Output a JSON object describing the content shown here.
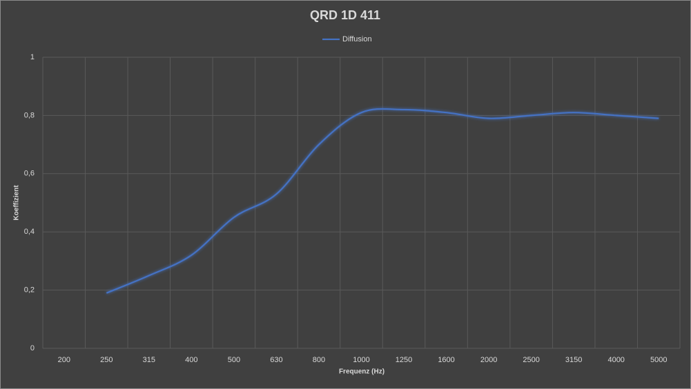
{
  "chart_data": {
    "type": "line",
    "title": "QRD 1D 411",
    "x_label": "Frequenz (Hz)",
    "y_label": "Koeffizient",
    "categories": [
      "200",
      "250",
      "315",
      "400",
      "500",
      "630",
      "800",
      "1000",
      "1250",
      "1600",
      "2000",
      "2500",
      "3150",
      "4000",
      "5000"
    ],
    "series": [
      {
        "name": "Diffusion",
        "color": "#4472c4",
        "values": [
          null,
          0.19,
          0.25,
          0.32,
          0.45,
          0.53,
          0.7,
          0.81,
          0.82,
          0.81,
          0.79,
          0.8,
          0.81,
          0.8,
          0.79
        ]
      }
    ],
    "ylim": [
      0,
      1
    ],
    "yticks": [
      0,
      {
        "value": 0.2,
        "label": "0,2"
      },
      {
        "value": 0.4,
        "label": "0,4"
      },
      {
        "value": 0.6,
        "label": "0,6"
      },
      {
        "value": 0.8,
        "label": "0,8"
      },
      1
    ],
    "grid": true,
    "legend": "top",
    "smooth": true
  }
}
